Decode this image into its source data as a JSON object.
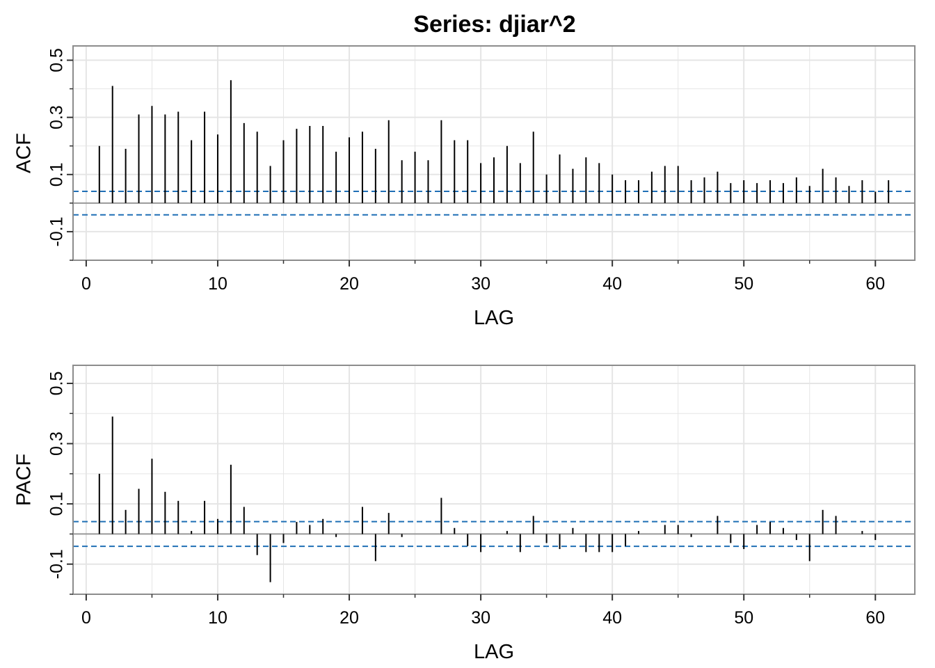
{
  "title": "Series:  djiar^2",
  "chart_data": [
    {
      "type": "bar",
      "ylabel": "ACF",
      "xlabel": "LAG",
      "xlim": [
        -1,
        63
      ],
      "ylim": [
        -0.2,
        0.55
      ],
      "xticks": [
        0,
        10,
        20,
        30,
        40,
        50,
        60
      ],
      "xtick_labels": [
        "0",
        "10",
        "20",
        "30",
        "40",
        "50",
        "60"
      ],
      "yticks": [
        -0.1,
        0.1,
        0.3,
        0.5
      ],
      "ytick_labels": [
        "-0.1",
        "0.1",
        "0.3",
        "0.5"
      ],
      "grid": true,
      "confidence_bounds": [
        0.041,
        -0.041
      ],
      "colors": {
        "bars": "#000000",
        "bounds": "#1f6fb5",
        "grid": "#e5e5e5",
        "zero": "#999999",
        "frame": "#8c8c8c"
      },
      "x": [
        1,
        2,
        3,
        4,
        5,
        6,
        7,
        8,
        9,
        10,
        11,
        12,
        13,
        14,
        15,
        16,
        17,
        18,
        19,
        20,
        21,
        22,
        23,
        24,
        25,
        26,
        27,
        28,
        29,
        30,
        31,
        32,
        33,
        34,
        35,
        36,
        37,
        38,
        39,
        40,
        41,
        42,
        43,
        44,
        45,
        46,
        47,
        48,
        49,
        50,
        51,
        52,
        53,
        54,
        55,
        56,
        57,
        58,
        59,
        60,
        61
      ],
      "values": [
        0.2,
        0.41,
        0.19,
        0.31,
        0.34,
        0.31,
        0.32,
        0.22,
        0.32,
        0.24,
        0.43,
        0.28,
        0.25,
        0.13,
        0.22,
        0.26,
        0.27,
        0.27,
        0.18,
        0.23,
        0.25,
        0.19,
        0.29,
        0.15,
        0.18,
        0.15,
        0.29,
        0.22,
        0.22,
        0.14,
        0.16,
        0.2,
        0.14,
        0.25,
        0.1,
        0.17,
        0.12,
        0.16,
        0.14,
        0.1,
        0.08,
        0.08,
        0.11,
        0.13,
        0.13,
        0.08,
        0.09,
        0.11,
        0.07,
        0.08,
        0.07,
        0.08,
        0.07,
        0.09,
        0.06,
        0.12,
        0.09,
        0.06,
        0.08,
        0.04,
        0.08
      ]
    },
    {
      "type": "bar",
      "ylabel": "PACF",
      "xlabel": "LAG",
      "xlim": [
        -1,
        63
      ],
      "ylim": [
        -0.2,
        0.56
      ],
      "xticks": [
        0,
        10,
        20,
        30,
        40,
        50,
        60
      ],
      "xtick_labels": [
        "0",
        "10",
        "20",
        "30",
        "40",
        "50",
        "60"
      ],
      "yticks": [
        -0.1,
        0.1,
        0.3,
        0.5
      ],
      "ytick_labels": [
        "-0.1",
        "0.1",
        "0.3",
        "0.5"
      ],
      "grid": true,
      "confidence_bounds": [
        0.041,
        -0.041
      ],
      "colors": {
        "bars": "#000000",
        "bounds": "#1f6fb5",
        "grid": "#e5e5e5",
        "zero": "#999999",
        "frame": "#8c8c8c"
      },
      "x": [
        1,
        2,
        3,
        4,
        5,
        6,
        7,
        8,
        9,
        10,
        11,
        12,
        13,
        14,
        15,
        16,
        17,
        18,
        19,
        20,
        21,
        22,
        23,
        24,
        25,
        26,
        27,
        28,
        29,
        30,
        31,
        32,
        33,
        34,
        35,
        36,
        37,
        38,
        39,
        40,
        41,
        42,
        43,
        44,
        45,
        46,
        47,
        48,
        49,
        50,
        51,
        52,
        53,
        54,
        55,
        56,
        57,
        58,
        59,
        60,
        61
      ],
      "values": [
        0.2,
        0.39,
        0.08,
        0.15,
        0.25,
        0.14,
        0.11,
        0.01,
        0.11,
        0.05,
        0.23,
        0.09,
        -0.07,
        -0.16,
        -0.03,
        0.04,
        0.03,
        0.05,
        -0.01,
        0.0,
        0.09,
        -0.09,
        0.07,
        -0.01,
        0.0,
        0.0,
        0.12,
        0.02,
        -0.04,
        -0.06,
        0.0,
        0.01,
        -0.06,
        0.06,
        -0.03,
        -0.05,
        0.02,
        -0.06,
        -0.06,
        -0.06,
        -0.04,
        0.01,
        0.0,
        0.03,
        0.03,
        -0.01,
        0.0,
        0.06,
        -0.03,
        -0.05,
        0.03,
        0.04,
        0.02,
        -0.02,
        -0.09,
        0.08,
        0.06,
        0.0,
        0.01,
        -0.02,
        0.0
      ]
    }
  ]
}
